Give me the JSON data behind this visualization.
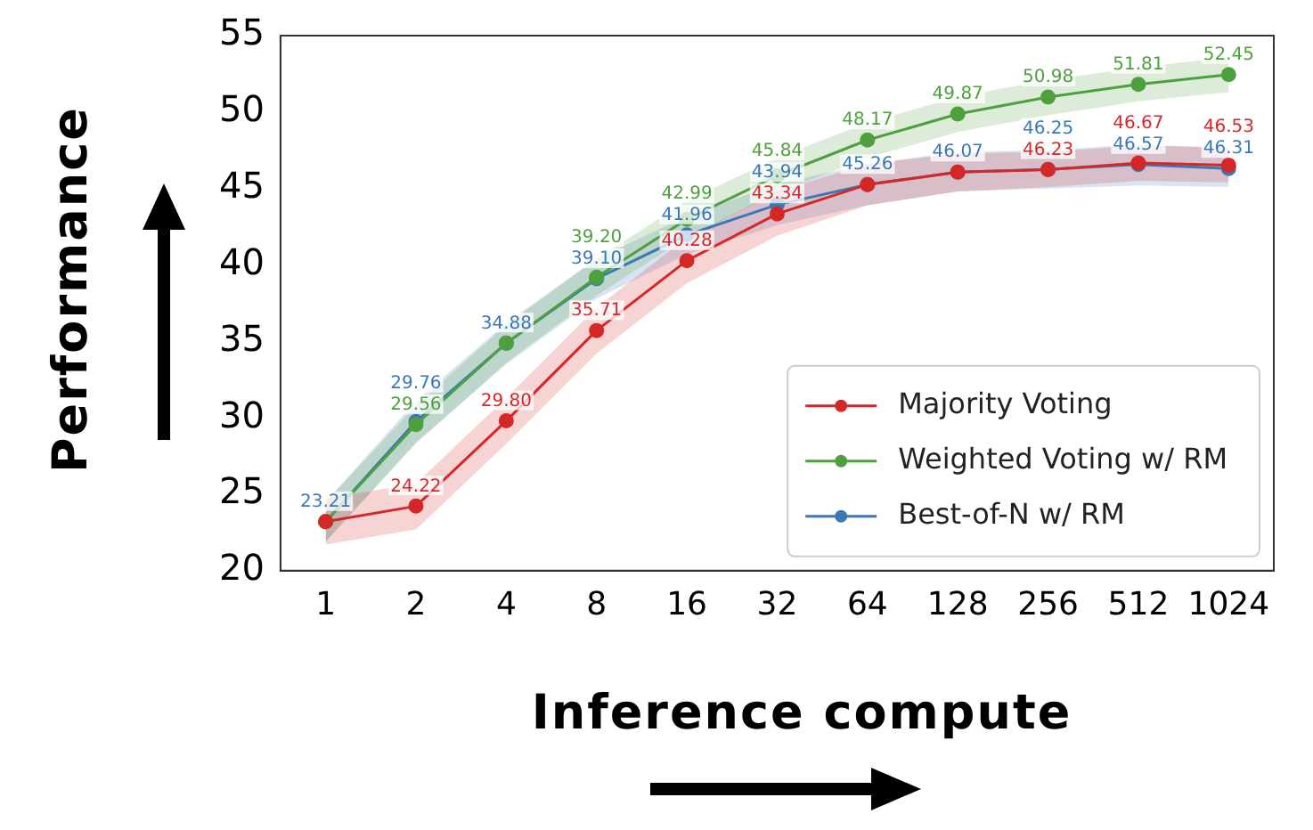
{
  "chart_data": {
    "type": "line",
    "xlabel": "Inference compute",
    "ylabel": "Performance",
    "categories": [
      "1",
      "2",
      "4",
      "8",
      "16",
      "32",
      "64",
      "128",
      "256",
      "512",
      "1024"
    ],
    "ylim": [
      20,
      55
    ],
    "yticks": [
      20,
      25,
      30,
      35,
      40,
      45,
      50,
      55
    ],
    "grid": false,
    "legend": "bottom right",
    "marker": "circle",
    "line_style": "solid",
    "series": [
      {
        "name": "Majority Voting",
        "color": "#d62728",
        "values": [
          23.21,
          24.22,
          29.8,
          35.71,
          40.28,
          43.34,
          45.26,
          46.07,
          46.23,
          46.67,
          46.53
        ],
        "value_labels": [
          null,
          "24.22",
          "29.80",
          "35.71",
          "40.28",
          "43.34",
          null,
          null,
          "46.23",
          "46.67",
          "46.53"
        ],
        "lower": [
          21.7,
          22.7,
          28.3,
          34.2,
          38.8,
          41.9,
          43.9,
          44.8,
          45.1,
          45.5,
          45.4
        ],
        "upper": [
          24.7,
          25.7,
          31.3,
          37.2,
          41.8,
          44.8,
          46.6,
          47.3,
          47.4,
          47.8,
          47.7
        ]
      },
      {
        "name": "Weighted Voting w/ RM",
        "color": "#4ea03e",
        "values": [
          23.21,
          29.56,
          34.88,
          39.2,
          42.99,
          45.84,
          48.17,
          49.87,
          50.98,
          51.81,
          52.45
        ],
        "value_labels": [
          null,
          "29.56",
          null,
          "39.20",
          "42.99",
          "45.84",
          "48.17",
          "49.87",
          "50.98",
          "51.81",
          "52.45"
        ],
        "lower": [
          21.9,
          28.3,
          33.6,
          38.0,
          41.8,
          44.7,
          47.0,
          48.7,
          49.8,
          50.7,
          51.3
        ],
        "upper": [
          24.5,
          30.8,
          36.1,
          40.4,
          44.2,
          47.0,
          49.3,
          51.0,
          52.1,
          52.9,
          53.6
        ]
      },
      {
        "name": "Best-of-N w/ RM",
        "color": "#3b78b8",
        "values": [
          23.21,
          29.76,
          34.88,
          39.1,
          41.96,
          43.94,
          45.26,
          46.07,
          46.25,
          46.57,
          46.31
        ],
        "value_labels": [
          "23.21",
          "29.76",
          "34.88",
          "39.10",
          "41.96",
          "43.94",
          "45.26",
          "46.07",
          "46.25",
          "46.57",
          "46.31"
        ],
        "lower": [
          21.9,
          28.4,
          33.5,
          37.8,
          40.7,
          42.6,
          43.9,
          44.8,
          45.0,
          45.2,
          45.1
        ],
        "upper": [
          24.5,
          31.1,
          36.2,
          40.4,
          43.2,
          45.3,
          46.6,
          47.4,
          47.5,
          47.9,
          47.6
        ]
      }
    ]
  }
}
